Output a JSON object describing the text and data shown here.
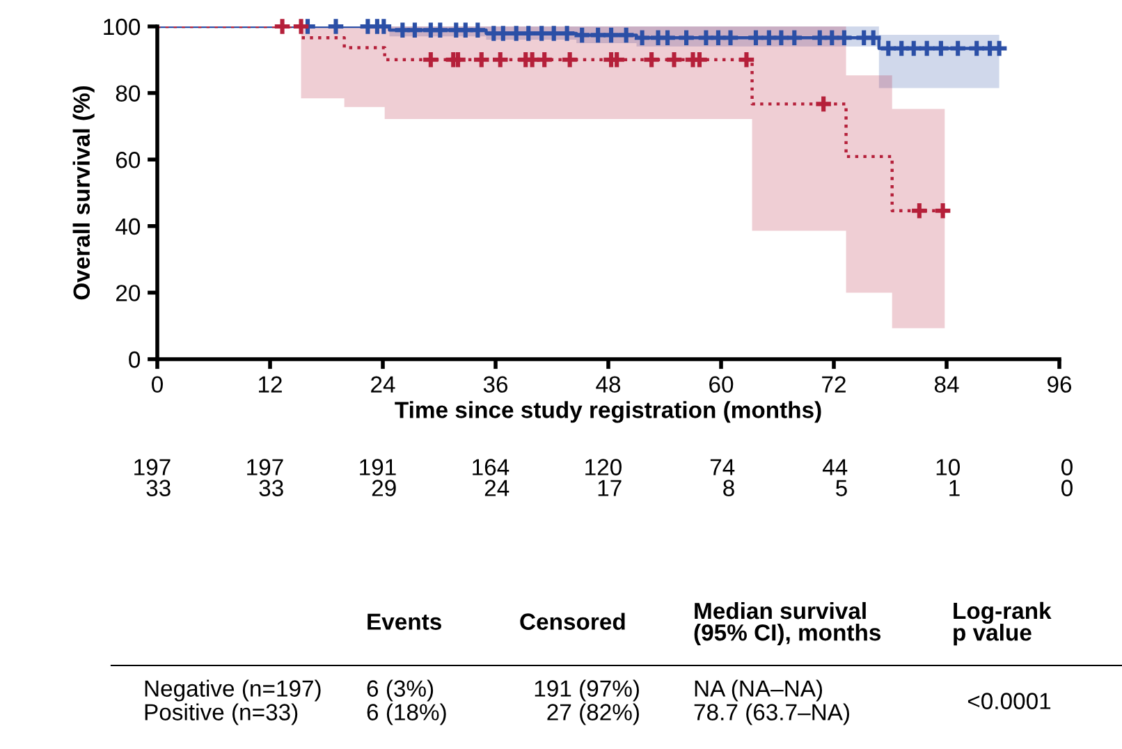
{
  "chart_data": {
    "type": "step",
    "xlabel": "Time since study registration (months)",
    "ylabel": "Overall survival (%)",
    "xlim": [
      0,
      96
    ],
    "xticks": [
      0,
      12,
      24,
      36,
      48,
      60,
      72,
      84,
      96
    ],
    "ylim": [
      0,
      100
    ],
    "yticks": [
      0,
      20,
      40,
      60,
      80,
      100
    ],
    "grid": false,
    "series": [
      {
        "color": "#2b4fa6",
        "line_style": "solid",
        "x": [
          0,
          24.7,
          35,
          44.6,
          51,
          76.8,
          89.6
        ],
        "values": [
          100,
          98.9,
          97.9,
          97.4,
          96.6,
          93.4,
          93.4
        ],
        "lower": [
          100,
          97,
          96,
          95,
          94,
          81.5,
          81.5
        ],
        "upper": [
          100,
          100,
          100,
          100,
          100,
          97.5,
          97.5
        ]
      },
      {
        "color": "#b5203a",
        "line_style": "dotted",
        "x": [
          0,
          15.3,
          19.9,
          24.2,
          63.3,
          73.3,
          78.2,
          83.8
        ],
        "values": [
          100,
          96.6,
          93.6,
          90,
          76.7,
          60.9,
          44.6,
          44.6
        ],
        "lower": [
          100,
          78.4,
          75.8,
          72.2,
          38.6,
          20,
          9.3,
          9.3
        ],
        "upper": [
          100,
          100,
          100,
          100,
          100,
          85.3,
          75.2,
          75.2
        ]
      },
      {
        "type": "scatter",
        "color": "#2b4fa6",
        "marker": "cross",
        "x": [
          16,
          19,
          22.4,
          23.4,
          24.1,
          26.1,
          27.4,
          29.1,
          30.1,
          31.8,
          32.8,
          34.1,
          35.8,
          36.8,
          38.2,
          39.5,
          40.9,
          42.2,
          43.6,
          45.2,
          46.9,
          48.3,
          49.9,
          51.6,
          53.3,
          54.3,
          56.3,
          58.4,
          59.7,
          61,
          63.7,
          65.1,
          66.4,
          67.8,
          70.5,
          71.8,
          73.1,
          75.2,
          76.2,
          77.8,
          79.2,
          80.5,
          81.9,
          83.4,
          85.2,
          87.2,
          88.6,
          89.6
        ],
        "values": [
          100,
          100,
          100,
          100,
          100,
          98.9,
          98.9,
          98.9,
          98.9,
          98.9,
          98.9,
          98.9,
          97.9,
          97.9,
          97.9,
          97.9,
          97.9,
          97.9,
          97.9,
          97.4,
          97.4,
          97.4,
          97.4,
          96.6,
          96.6,
          96.6,
          96.6,
          96.6,
          96.6,
          96.6,
          96.6,
          96.6,
          96.6,
          96.6,
          96.6,
          96.6,
          96.6,
          96.6,
          96.6,
          93.4,
          93.4,
          93.4,
          93.4,
          93.4,
          93.4,
          93.4,
          93.4,
          93.4
        ]
      },
      {
        "type": "scatter",
        "color": "#b5203a",
        "marker": "cross",
        "x": [
          13.3,
          15.3,
          29.1,
          31.5,
          32,
          34.5,
          36.5,
          39.2,
          39.9,
          41.2,
          43.9,
          48.3,
          48.9,
          52.6,
          55,
          57,
          57.7,
          62.7,
          70.9,
          81.1,
          83.6
        ],
        "values": [
          100,
          100,
          90,
          90,
          90,
          90,
          90,
          90,
          90,
          90,
          90,
          90,
          90,
          90,
          90,
          90,
          90,
          90,
          76.7,
          44.6,
          44.6
        ]
      }
    ],
    "annotations": [
      "197",
      "197",
      "191",
      "164",
      "120",
      "74",
      "44",
      "10",
      "0",
      "33",
      "33",
      "29",
      "24",
      "17",
      "8",
      "5",
      "1",
      "0",
      "Events",
      "Censored",
      "Median survival\n(95% CI), months",
      "Log-rank\np value",
      "Negative (n=197)",
      "6 (3%)",
      "191 (97%)",
      "NA (NA–NA)",
      "Positive (n=33)",
      "6 (18%)",
      "27 (82%)",
      "78.7 (63.7–NA)",
      "<0.0001"
    ]
  }
}
